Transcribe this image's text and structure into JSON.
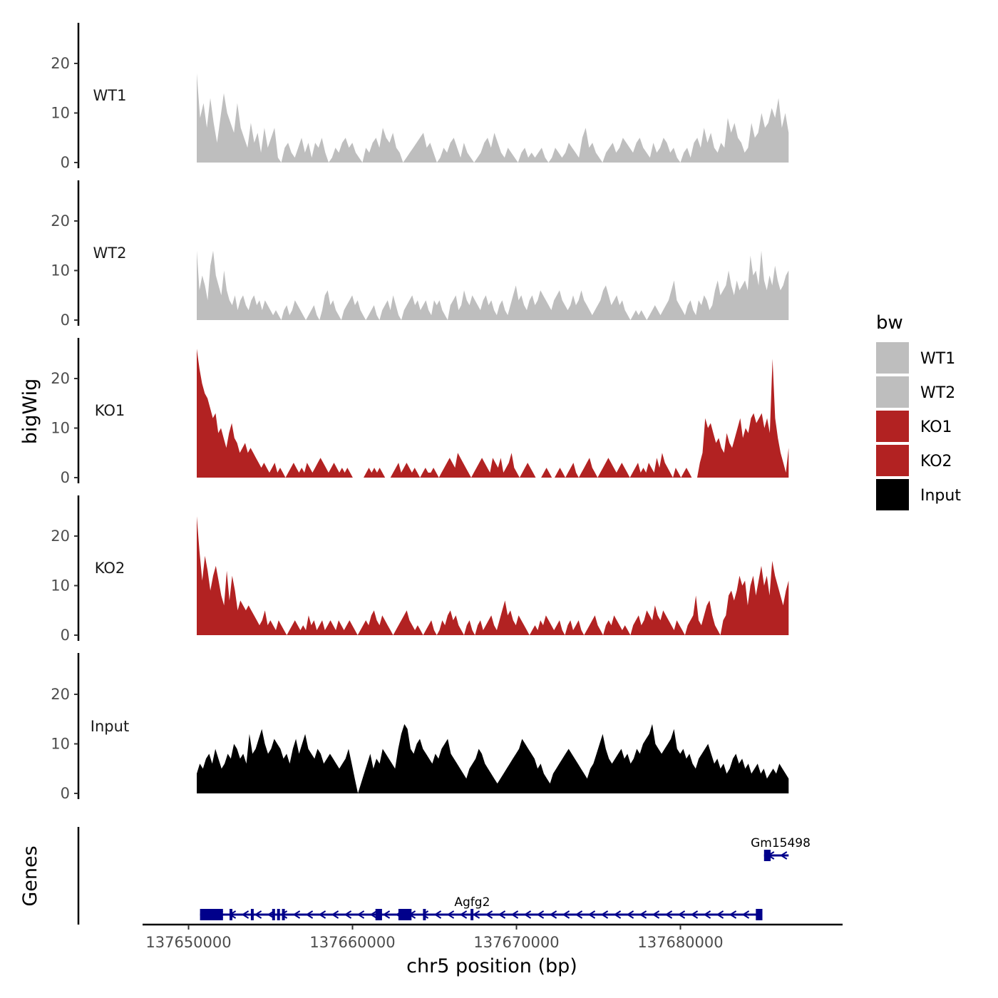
{
  "chart_data": {
    "type": "area",
    "region": {
      "chrom": "chr5",
      "start": 137650500,
      "end": 137686600
    },
    "xlim": [
      137648500,
      137688500
    ],
    "x_ticks": [
      137650000,
      137660000,
      137670000,
      137680000
    ],
    "x_tick_labels": [
      "137650000",
      "137660000",
      "137670000",
      "137680000"
    ],
    "xlabel": "chr5 position (bp)",
    "ylabel": "bigWig",
    "ylim": [
      0,
      28
    ],
    "y_ticks": [
      0,
      10,
      20
    ],
    "y_tick_labels": [
      "0",
      "10",
      "20"
    ],
    "tracks_ylabel": "bigWig",
    "genes_ylabel": "Genes",
    "legend": {
      "title": "bw",
      "position": "right",
      "entries": [
        {
          "label": "WT1",
          "color": "#bebebe"
        },
        {
          "label": "WT2",
          "color": "#bebebe"
        },
        {
          "label": "KO1",
          "color": "#b22222"
        },
        {
          "label": "KO2",
          "color": "#b22222"
        },
        {
          "label": "Input",
          "color": "#000000"
        }
      ]
    },
    "series": [
      {
        "name": "WT1",
        "color": "#bebebe",
        "values": [
          18,
          9,
          12,
          7,
          13,
          8,
          4,
          9,
          14,
          10,
          8,
          6,
          12,
          7,
          5,
          3,
          8,
          4,
          6,
          2,
          7,
          3,
          5,
          7,
          1,
          0,
          3,
          4,
          2,
          1,
          3,
          5,
          2,
          4,
          1,
          4,
          3,
          5,
          2,
          0,
          1,
          3,
          2,
          4,
          5,
          3,
          4,
          2,
          1,
          0,
          3,
          2,
          4,
          5,
          3,
          7,
          5,
          4,
          6,
          3,
          2,
          0,
          1,
          2,
          3,
          4,
          5,
          6,
          3,
          4,
          2,
          0,
          1,
          3,
          2,
          4,
          5,
          3,
          1,
          4,
          2,
          1,
          0,
          1,
          2,
          4,
          5,
          3,
          6,
          4,
          2,
          1,
          3,
          2,
          1,
          0,
          2,
          3,
          1,
          2,
          1,
          2,
          3,
          1,
          0,
          1,
          3,
          2,
          1,
          2,
          4,
          3,
          2,
          1,
          5,
          7,
          3,
          4,
          2,
          1,
          0,
          2,
          3,
          4,
          2,
          3,
          5,
          4,
          3,
          2,
          4,
          5,
          3,
          2,
          1,
          4,
          2,
          3,
          5,
          4,
          2,
          3,
          1,
          0,
          2,
          3,
          1,
          4,
          5,
          3,
          7,
          4,
          6,
          3,
          2,
          4,
          3,
          9,
          6,
          8,
          5,
          4,
          2,
          3,
          8,
          5,
          6,
          10,
          7,
          8,
          11,
          9,
          13,
          7,
          10,
          6
        ]
      },
      {
        "name": "WT2",
        "color": "#bebebe",
        "values": [
          14,
          6,
          9,
          7,
          4,
          11,
          14,
          9,
          7,
          5,
          10,
          6,
          4,
          3,
          5,
          2,
          4,
          5,
          3,
          2,
          4,
          5,
          3,
          4,
          2,
          4,
          3,
          2,
          1,
          2,
          1,
          0,
          2,
          3,
          1,
          2,
          4,
          3,
          2,
          1,
          0,
          1,
          2,
          3,
          1,
          0,
          2,
          5,
          6,
          3,
          4,
          2,
          1,
          0,
          2,
          3,
          4,
          5,
          3,
          4,
          2,
          1,
          0,
          1,
          2,
          3,
          1,
          0,
          2,
          3,
          4,
          2,
          5,
          3,
          1,
          0,
          2,
          3,
          4,
          5,
          3,
          4,
          2,
          3,
          4,
          2,
          1,
          4,
          3,
          4,
          2,
          1,
          0,
          3,
          4,
          5,
          2,
          3,
          6,
          4,
          3,
          5,
          4,
          3,
          2,
          4,
          5,
          3,
          4,
          2,
          1,
          3,
          4,
          2,
          1,
          3,
          5,
          7,
          4,
          5,
          3,
          2,
          4,
          5,
          3,
          4,
          6,
          5,
          4,
          3,
          2,
          4,
          5,
          6,
          4,
          3,
          2,
          3,
          5,
          3,
          4,
          6,
          4,
          3,
          2,
          1,
          2,
          3,
          4,
          6,
          7,
          5,
          3,
          4,
          5,
          3,
          4,
          2,
          1,
          0,
          1,
          2,
          1,
          2,
          1,
          0,
          1,
          2,
          3,
          2,
          1,
          2,
          3,
          4,
          6,
          8,
          4,
          3,
          2,
          1,
          3,
          4,
          2,
          1,
          4,
          3,
          5,
          4,
          2,
          3,
          6,
          8,
          5,
          6,
          7,
          10,
          7,
          5,
          8,
          6,
          7,
          8,
          6,
          13,
          9,
          10,
          7,
          14,
          8,
          6,
          9,
          7,
          11,
          8,
          6,
          7,
          9,
          10
        ]
      },
      {
        "name": "KO1",
        "color": "#b22222",
        "values": [
          26,
          22,
          19,
          17,
          16,
          14,
          12,
          13,
          9,
          10,
          8,
          6,
          9,
          11,
          8,
          7,
          5,
          6,
          7,
          5,
          6,
          5,
          4,
          3,
          2,
          3,
          2,
          1,
          2,
          3,
          1,
          2,
          1,
          0,
          1,
          2,
          3,
          2,
          1,
          2,
          1,
          3,
          2,
          1,
          2,
          3,
          4,
          3,
          2,
          1,
          2,
          3,
          2,
          1,
          2,
          1,
          2,
          1,
          0,
          0,
          0,
          0,
          0,
          1,
          2,
          1,
          2,
          1,
          2,
          1,
          0,
          0,
          0,
          1,
          2,
          3,
          1,
          2,
          3,
          2,
          1,
          2,
          1,
          0,
          1,
          2,
          1,
          1,
          2,
          1,
          0,
          1,
          2,
          3,
          4,
          3,
          2,
          5,
          4,
          3,
          2,
          1,
          0,
          1,
          2,
          3,
          4,
          3,
          2,
          1,
          4,
          3,
          2,
          4,
          1,
          2,
          3,
          5,
          2,
          1,
          0,
          1,
          2,
          3,
          2,
          1,
          0,
          0,
          0,
          1,
          2,
          1,
          0,
          0,
          1,
          2,
          1,
          0,
          1,
          2,
          3,
          1,
          0,
          1,
          2,
          3,
          4,
          2,
          1,
          0,
          1,
          2,
          3,
          4,
          3,
          2,
          1,
          2,
          3,
          2,
          1,
          0,
          1,
          2,
          3,
          1,
          2,
          1,
          3,
          2,
          1,
          4,
          2,
          5,
          3,
          2,
          1,
          0,
          2,
          1,
          0,
          1,
          2,
          1,
          0,
          0,
          0,
          3,
          5,
          12,
          10,
          11,
          9,
          7,
          8,
          6,
          5,
          9,
          7,
          6,
          8,
          10,
          12,
          8,
          10,
          9,
          12,
          13,
          11,
          12,
          13,
          10,
          12,
          9,
          24,
          12,
          8,
          5,
          3,
          1,
          6
        ]
      },
      {
        "name": "KO2",
        "color": "#b22222",
        "values": [
          24,
          17,
          11,
          16,
          13,
          9,
          12,
          14,
          11,
          8,
          6,
          13,
          7,
          12,
          9,
          5,
          7,
          6,
          5,
          6,
          5,
          4,
          3,
          2,
          3,
          5,
          2,
          3,
          2,
          1,
          3,
          2,
          1,
          0,
          1,
          2,
          3,
          2,
          1,
          2,
          1,
          4,
          2,
          3,
          1,
          2,
          3,
          1,
          2,
          3,
          2,
          1,
          3,
          2,
          1,
          2,
          3,
          2,
          1,
          0,
          1,
          2,
          3,
          2,
          4,
          5,
          3,
          2,
          4,
          3,
          2,
          1,
          0,
          1,
          2,
          3,
          4,
          5,
          3,
          2,
          1,
          2,
          1,
          0,
          1,
          2,
          3,
          1,
          0,
          1,
          3,
          2,
          4,
          5,
          3,
          4,
          2,
          1,
          0,
          2,
          3,
          1,
          0,
          2,
          3,
          1,
          2,
          3,
          4,
          2,
          1,
          3,
          5,
          7,
          4,
          5,
          3,
          2,
          4,
          3,
          2,
          1,
          0,
          1,
          2,
          1,
          3,
          2,
          4,
          3,
          2,
          1,
          2,
          3,
          1,
          0,
          2,
          3,
          1,
          2,
          3,
          1,
          0,
          1,
          2,
          3,
          4,
          2,
          1,
          0,
          2,
          3,
          2,
          4,
          3,
          2,
          1,
          2,
          1,
          0,
          2,
          3,
          4,
          2,
          3,
          5,
          4,
          3,
          6,
          4,
          3,
          5,
          4,
          3,
          2,
          1,
          3,
          2,
          1,
          0,
          2,
          3,
          4,
          8,
          3,
          2,
          4,
          6,
          7,
          4,
          2,
          1,
          0,
          3,
          4,
          8,
          9,
          7,
          9,
          12,
          10,
          11,
          6,
          10,
          12,
          8,
          11,
          14,
          10,
          12,
          8,
          15,
          12,
          10,
          8,
          6,
          9,
          11
        ]
      },
      {
        "name": "Input",
        "color": "#000000",
        "values": [
          4,
          6,
          5,
          7,
          8,
          6,
          9,
          7,
          5,
          6,
          8,
          7,
          10,
          9,
          7,
          8,
          6,
          12,
          8,
          9,
          11,
          13,
          10,
          8,
          9,
          11,
          10,
          9,
          7,
          8,
          6,
          9,
          11,
          8,
          10,
          12,
          9,
          8,
          7,
          9,
          8,
          6,
          7,
          8,
          7,
          6,
          5,
          6,
          7,
          9,
          6,
          3,
          0,
          2,
          4,
          6,
          8,
          5,
          7,
          6,
          9,
          8,
          7,
          6,
          5,
          9,
          12,
          14,
          13,
          9,
          8,
          10,
          11,
          9,
          8,
          7,
          6,
          8,
          7,
          9,
          10,
          11,
          8,
          7,
          6,
          5,
          4,
          3,
          5,
          6,
          7,
          9,
          8,
          6,
          5,
          4,
          3,
          2,
          3,
          4,
          5,
          6,
          7,
          8,
          9,
          11,
          10,
          9,
          8,
          7,
          5,
          6,
          4,
          3,
          2,
          4,
          5,
          6,
          7,
          8,
          9,
          8,
          7,
          6,
          5,
          4,
          3,
          5,
          6,
          8,
          10,
          12,
          9,
          7,
          6,
          7,
          8,
          9,
          7,
          8,
          6,
          7,
          9,
          8,
          10,
          11,
          12,
          14,
          10,
          9,
          8,
          9,
          10,
          11,
          13,
          9,
          8,
          9,
          7,
          8,
          6,
          5,
          7,
          8,
          9,
          10,
          8,
          6,
          7,
          5,
          6,
          4,
          5,
          7,
          8,
          6,
          7,
          5,
          6,
          4,
          5,
          6,
          4,
          5,
          3,
          4,
          5,
          4,
          6,
          5,
          4,
          3
        ]
      }
    ],
    "genes": [
      {
        "name": "Gm15498",
        "start": 137685100,
        "end": 137686600,
        "strand": "-",
        "row": "upper",
        "exons": [
          [
            137685100,
            137685500
          ]
        ]
      },
      {
        "name": "Agfg2",
        "start": 137650700,
        "end": 137685000,
        "strand": "-",
        "row": "lower",
        "exons": [
          [
            137650700,
            137652100
          ],
          [
            137652500,
            137652600
          ],
          [
            137653800,
            137653900
          ],
          [
            137655100,
            137655200
          ],
          [
            137655400,
            137655500
          ],
          [
            137655700,
            137655800
          ],
          [
            137661400,
            137661800
          ],
          [
            137662800,
            137663600
          ],
          [
            137664300,
            137664400
          ],
          [
            137667200,
            137667300
          ],
          [
            137684600,
            137685000
          ]
        ]
      }
    ]
  }
}
